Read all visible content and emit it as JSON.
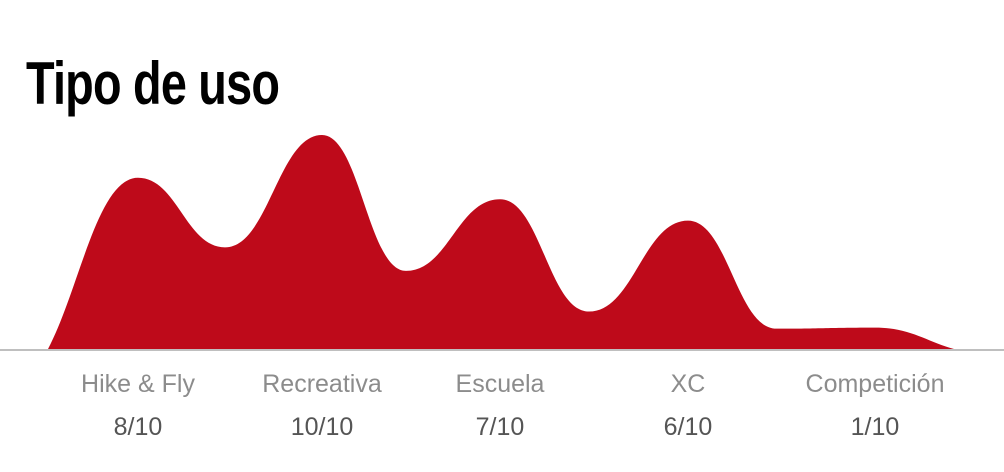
{
  "chart_data": {
    "type": "area",
    "title": "Tipo de uso",
    "categories": [
      "Hike & Fly",
      "Recreativa",
      "Escuela",
      "XC",
      "Competición"
    ],
    "values": [
      8,
      10,
      7,
      6,
      1
    ],
    "value_labels": [
      "8/10",
      "10/10",
      "7/10",
      "6/10",
      "1/10"
    ],
    "ylim": [
      0,
      10
    ],
    "grid": false,
    "legend": "none",
    "fill_color": "#BE0A1A",
    "baseline_color": "#BFBFBF"
  }
}
